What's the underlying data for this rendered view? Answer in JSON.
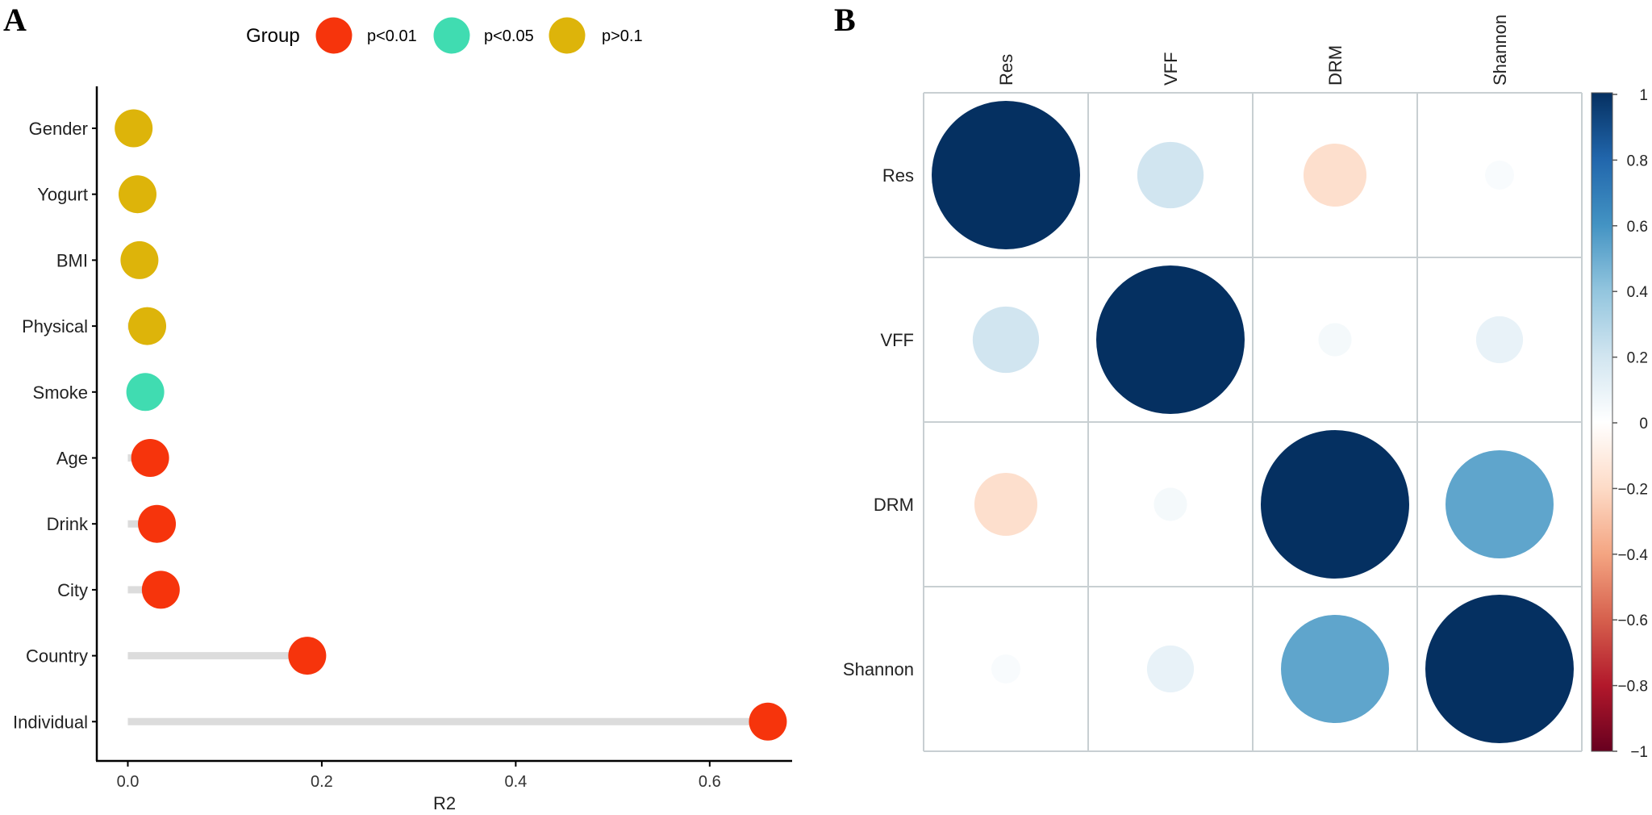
{
  "colors": {
    "p_lt_001": "#f6340c",
    "p_lt_005": "#40dcb1",
    "p_gt_01": "#ddb40a",
    "segment": "#dcdcdc",
    "axis": "#000000",
    "grid": "#c8cfd2",
    "neg_dark": "#67001f",
    "neg_mid": "#d6604d",
    "neg_light": "#fddbc7",
    "zero": "#ffffff",
    "pos_light": "#d1e5f0",
    "pos_mid": "#4393c3",
    "pos_dark": "#053061"
  },
  "chart_data": [
    {
      "panel": "A",
      "type": "scatter",
      "subtype": "lollipop",
      "xlabel": "R2",
      "ylabel": "",
      "xlim": [
        -0.032,
        0.685
      ],
      "xticks": [
        0.0,
        0.2,
        0.4,
        0.6
      ],
      "xtick_labels": [
        "0.0",
        "0.2",
        "0.4",
        "0.6"
      ],
      "legend_title": "Group",
      "legend_position": "top",
      "legend": [
        {
          "label": "p<0.01",
          "color_key": "p_lt_001"
        },
        {
          "label": "p<0.05",
          "color_key": "p_lt_005"
        },
        {
          "label": "p>0.1",
          "color_key": "p_gt_01"
        }
      ],
      "categories": [
        "Gender",
        "Yogurt",
        "BMI",
        "Physical",
        "Smoke",
        "Age",
        "Drink",
        "City",
        "Country",
        "Individual"
      ],
      "values": [
        0.006,
        0.01,
        0.012,
        0.02,
        0.018,
        0.023,
        0.03,
        0.034,
        0.185,
        0.66
      ],
      "groups": [
        "p>0.1",
        "p>0.1",
        "p>0.1",
        "p>0.1",
        "p<0.05",
        "p<0.01",
        "p<0.01",
        "p<0.01",
        "p<0.01",
        "p<0.01"
      ]
    },
    {
      "panel": "B",
      "type": "heatmap",
      "subtype": "correlation-circles",
      "variables": [
        "Res",
        "VFF",
        "DRM",
        "Shannon"
      ],
      "matrix": [
        [
          1.0,
          0.2,
          -0.18,
          0.03
        ],
        [
          0.2,
          1.0,
          0.05,
          0.1
        ],
        [
          -0.18,
          0.05,
          1.0,
          0.53
        ],
        [
          0.03,
          0.1,
          0.53,
          1.0
        ]
      ],
      "colorbar_range": [
        -1,
        1
      ],
      "colorbar_ticks": [
        1,
        0.8,
        0.6,
        0.4,
        0.2,
        0,
        -0.2,
        -0.4,
        -0.6,
        -0.8,
        -1
      ],
      "colorbar_tick_labels": [
        "1",
        "0.8",
        "0.6",
        "0.4",
        "0.2",
        "0",
        "−0.2",
        "−0.4",
        "−0.6",
        "−0.8",
        "−1"
      ]
    }
  ],
  "panels": {
    "A": {
      "label": "A"
    },
    "B": {
      "label": "B"
    }
  }
}
